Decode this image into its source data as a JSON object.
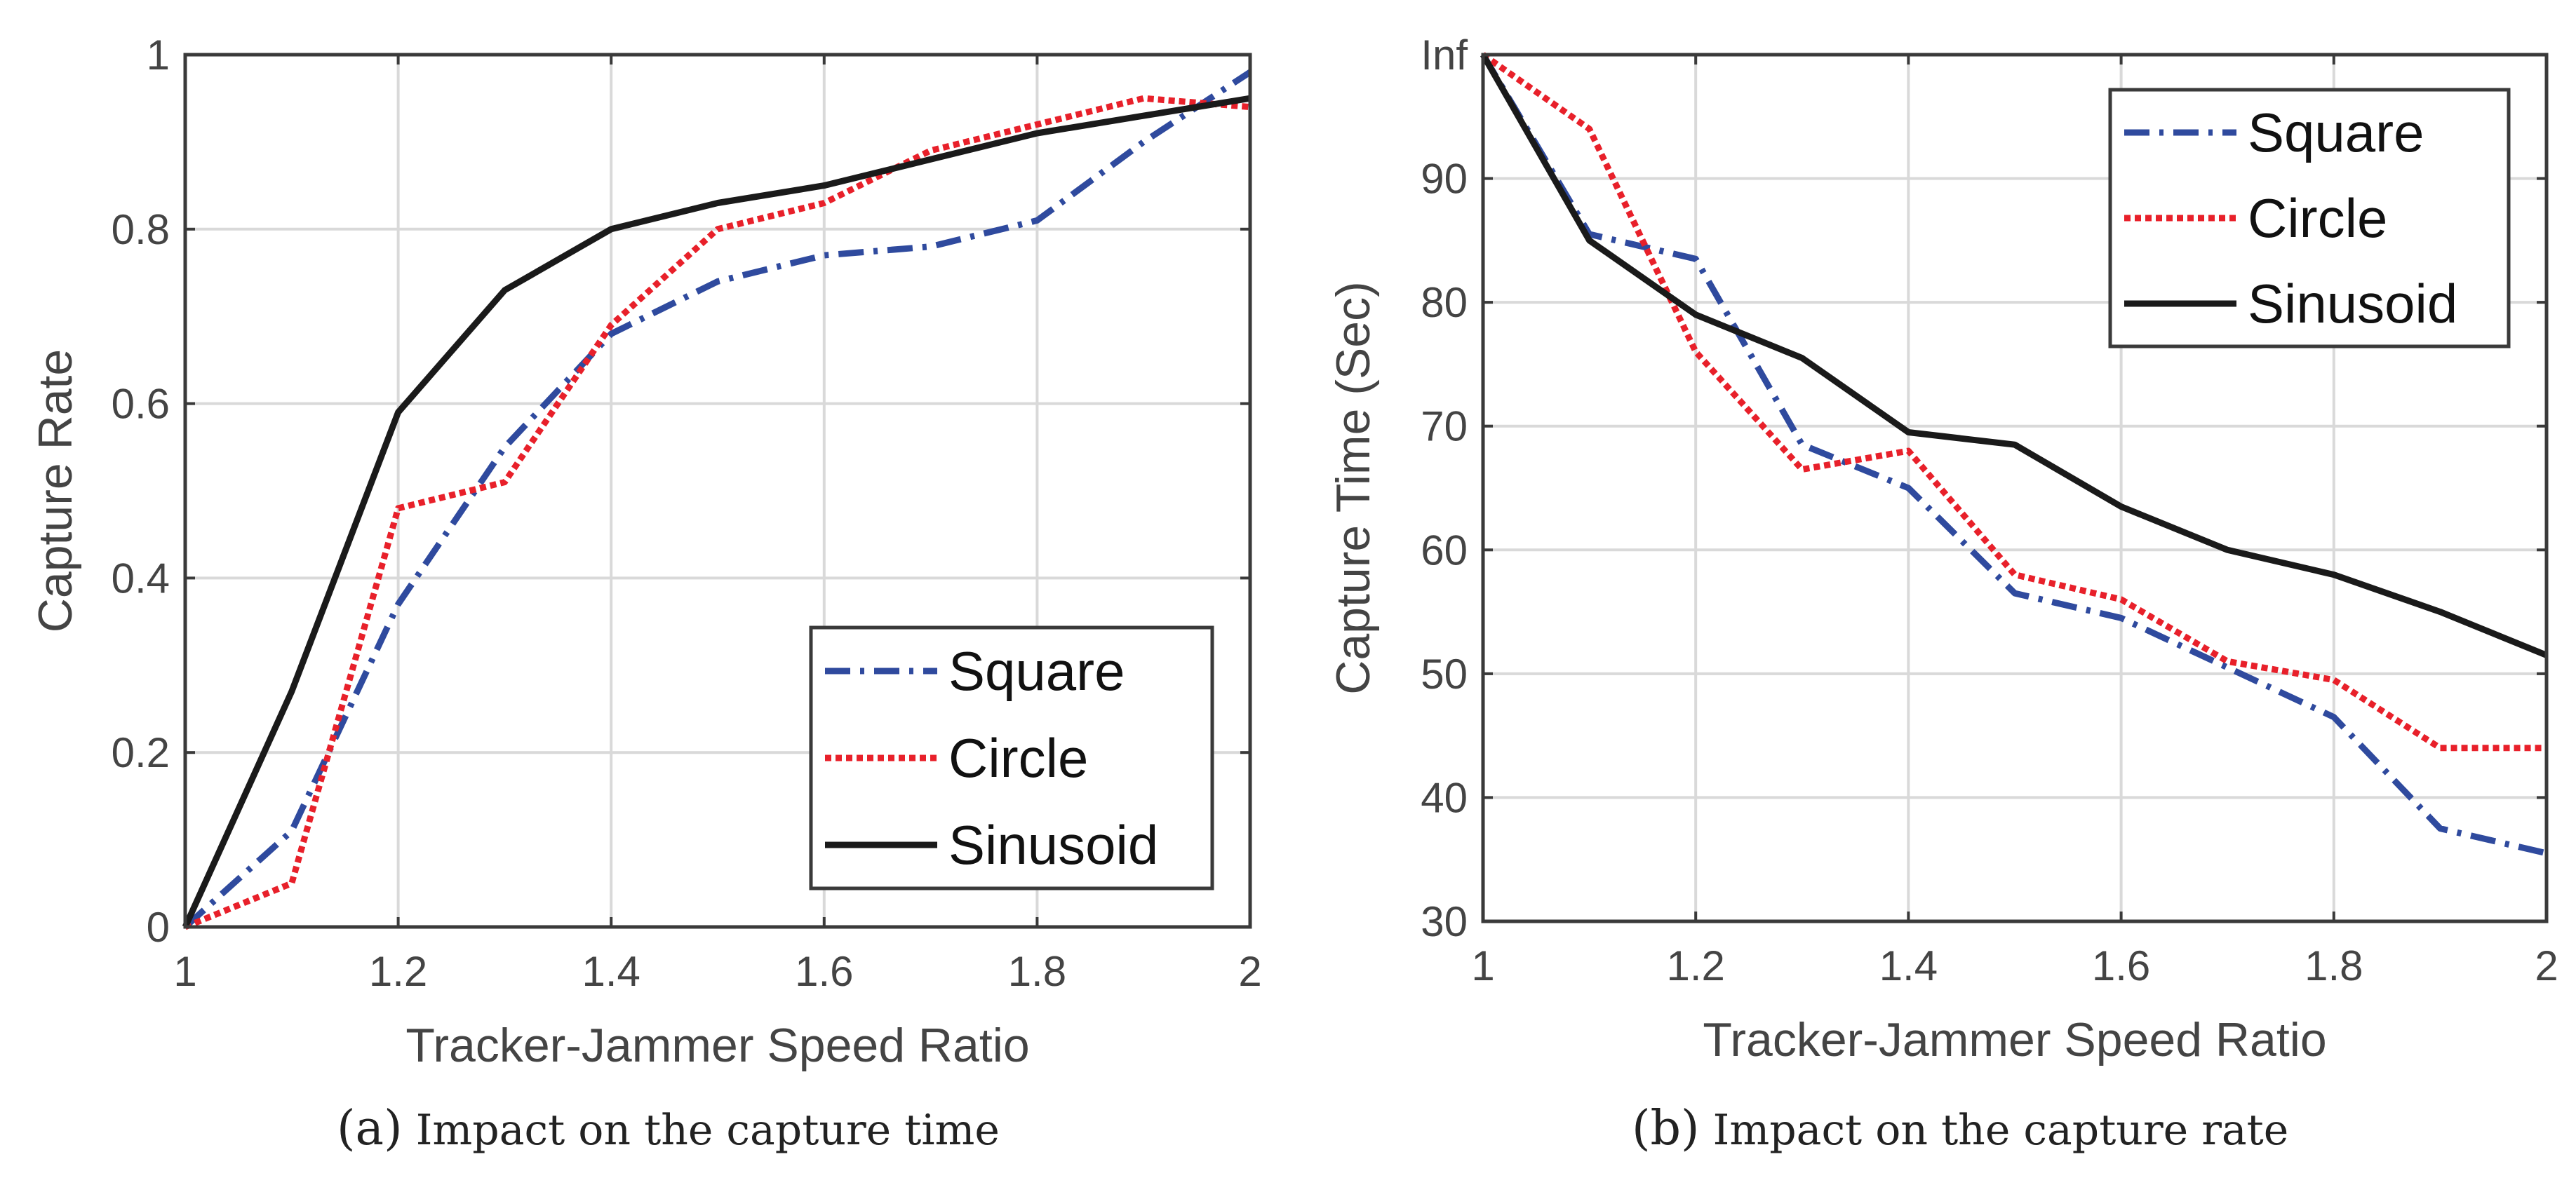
{
  "colors": {
    "square": "#2F4A9E",
    "circle": "#E8202A",
    "sinusoid": "#1A1A1A",
    "axis": "#3A3A3A",
    "grid": "#D9D9D9",
    "text": "#444444"
  },
  "captions": [
    {
      "label": "(a)",
      "text": "Impact on the capture time"
    },
    {
      "label": "(b)",
      "text": "Impact on the capture rate"
    }
  ],
  "chart_data": [
    {
      "type": "line",
      "title": "",
      "xlabel": "Tracker-Jammer Speed Ratio",
      "ylabel": "Capture Rate",
      "xlim": [
        1,
        2
      ],
      "ylim": [
        0,
        1
      ],
      "xticks": [
        1,
        1.2,
        1.4,
        1.6,
        1.8,
        2
      ],
      "xtick_labels": [
        "1",
        "1.2",
        "1.4",
        "1.6",
        "1.8",
        "2"
      ],
      "yticks": [
        0,
        0.2,
        0.4,
        0.6,
        0.8,
        1
      ],
      "ytick_labels": [
        "0",
        "0.2",
        "0.4",
        "0.6",
        "0.8",
        "1"
      ],
      "grid": true,
      "legend_position": "bottom-right",
      "x": [
        1,
        1.1,
        1.2,
        1.3,
        1.4,
        1.5,
        1.6,
        1.7,
        1.8,
        1.9,
        2
      ],
      "series": [
        {
          "name": "Square",
          "style": "dashdot",
          "values": [
            0,
            0.11,
            0.37,
            0.55,
            0.68,
            0.74,
            0.77,
            0.78,
            0.81,
            0.9,
            0.98
          ]
        },
        {
          "name": "Circle",
          "style": "dotted",
          "values": [
            0,
            0.05,
            0.48,
            0.51,
            0.69,
            0.8,
            0.83,
            0.89,
            0.92,
            0.95,
            0.94
          ]
        },
        {
          "name": "Sinusoid",
          "style": "solid",
          "values": [
            0,
            0.27,
            0.59,
            0.73,
            0.8,
            0.83,
            0.85,
            0.88,
            0.91,
            0.93,
            0.95
          ]
        }
      ]
    },
    {
      "type": "line",
      "title": "",
      "xlabel": "Tracker-Jammer Speed Ratio",
      "ylabel": "Capture Time (Sec)",
      "xlim": [
        1,
        2
      ],
      "ylim": [
        30,
        100
      ],
      "xticks": [
        1,
        1.2,
        1.4,
        1.6,
        1.8,
        2
      ],
      "xtick_labels": [
        "1",
        "1.2",
        "1.4",
        "1.6",
        "1.8",
        "2"
      ],
      "yticks": [
        30,
        40,
        50,
        60,
        70,
        80,
        90,
        100
      ],
      "ytick_labels": [
        "30",
        "40",
        "50",
        "60",
        "70",
        "80",
        "90",
        "Inf"
      ],
      "grid": true,
      "legend_position": "top-right",
      "x": [
        1,
        1.1,
        1.2,
        1.3,
        1.4,
        1.5,
        1.6,
        1.7,
        1.8,
        1.9,
        2
      ],
      "series": [
        {
          "name": "Square",
          "style": "dashdot",
          "values": [
            100,
            85.5,
            83.5,
            68.5,
            65,
            56.5,
            54.5,
            50.5,
            46.5,
            37.5,
            35.5
          ]
        },
        {
          "name": "Circle",
          "style": "dotted",
          "values": [
            100,
            94,
            76,
            66.5,
            68,
            58,
            56,
            51,
            49.5,
            44,
            44
          ]
        },
        {
          "name": "Sinusoid",
          "style": "solid",
          "values": [
            100,
            85,
            79,
            75.5,
            69.5,
            68.5,
            63.5,
            60,
            58,
            55,
            51.5
          ]
        }
      ]
    }
  ]
}
